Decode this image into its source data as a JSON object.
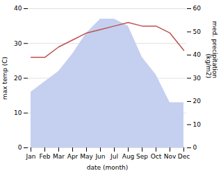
{
  "chart_data": {
    "type": "line",
    "xlabel": "date (month)",
    "ylabel": "max temp (C)",
    "y2label": "med. precipitation\n(kg/m2)",
    "categories": [
      "Jan",
      "Feb",
      "Mar",
      "Apr",
      "May",
      "Jun",
      "Jul",
      "Aug",
      "Sep",
      "Oct",
      "Nov",
      "Dec"
    ],
    "series": [
      {
        "type": "area",
        "color": "#c5d0f0",
        "values": [
          16,
          19,
          22,
          27,
          33,
          37,
          37,
          35,
          26,
          21,
          13,
          13
        ]
      },
      {
        "type": "line",
        "color": "#c0504d",
        "values": [
          26,
          26,
          29,
          31,
          33,
          34,
          35,
          36,
          35,
          35,
          33,
          28
        ]
      }
    ],
    "ylim": [
      0,
      40
    ],
    "yticks": [
      0,
      10,
      20,
      30,
      40
    ],
    "y2lim": [
      0,
      60
    ],
    "y2ticks": [
      0,
      10,
      20,
      30,
      40,
      50,
      60
    ],
    "grid": true
  }
}
